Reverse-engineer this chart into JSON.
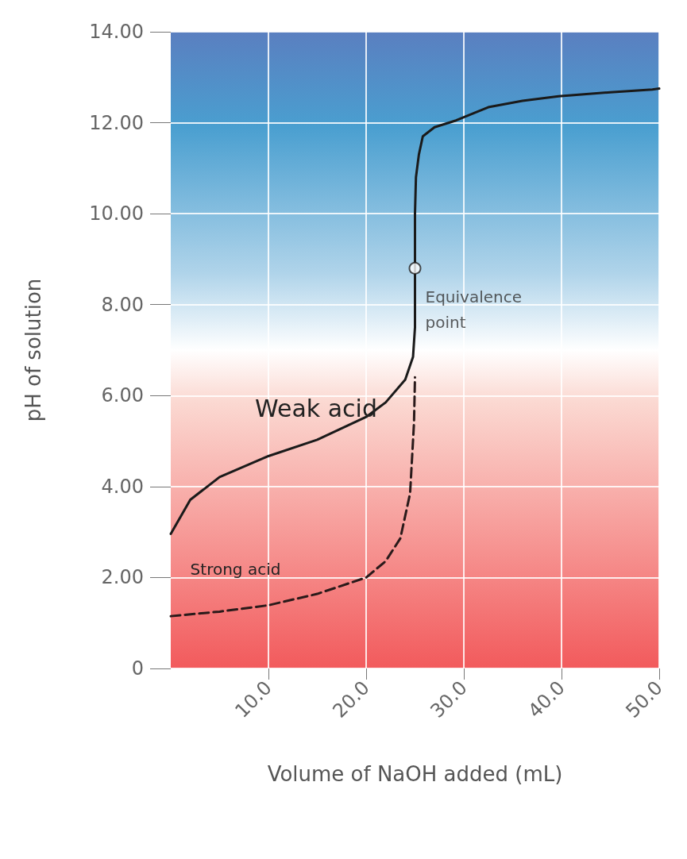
{
  "chart_data": {
    "type": "line",
    "xlabel": "Volume of NaOH added (mL)",
    "ylabel": "pH of solution",
    "xlim": [
      0,
      50
    ],
    "ylim": [
      0,
      14
    ],
    "xticks": [
      {
        "value": 10,
        "label": "10.0"
      },
      {
        "value": 20,
        "label": "20.0"
      },
      {
        "value": 30,
        "label": "30.0"
      },
      {
        "value": 40,
        "label": "40.0"
      },
      {
        "value": 50,
        "label": "50.0"
      }
    ],
    "yticks": [
      0,
      {
        "value": 2,
        "label": "2.00"
      },
      {
        "value": 4,
        "label": "4.00"
      },
      {
        "value": 6,
        "label": "6.00"
      },
      {
        "value": 8,
        "label": "8.00"
      },
      {
        "value": 10,
        "label": "10.00"
      },
      {
        "value": 12,
        "label": "12.00"
      },
      {
        "value": 14,
        "label": "14.00"
      }
    ],
    "grid": true,
    "legend": false,
    "marker": "none",
    "series": [
      {
        "name": "Weak acid",
        "color": "#1a1a1a",
        "line_style": "solid",
        "x": [
          0,
          2,
          5,
          10,
          15,
          20,
          22,
          24,
          24.8,
          25.0,
          25.0,
          25.0,
          25.1,
          25.4,
          25.8,
          27,
          29.2,
          32.5,
          36,
          39.7,
          45,
          49.3,
          50
        ],
        "values": [
          2.96,
          3.71,
          4.21,
          4.67,
          5.03,
          5.53,
          5.85,
          6.35,
          6.85,
          7.5,
          8.8,
          10.0,
          10.8,
          11.3,
          11.7,
          11.9,
          12.05,
          12.34,
          12.48,
          12.58,
          12.67,
          12.73,
          12.75
        ]
      },
      {
        "name": "Strong acid",
        "color": "#2a1a1a",
        "line_style": "dashed",
        "x": [
          0,
          5,
          10,
          15,
          20,
          22,
          23.5,
          24.5,
          24.9,
          25.0
        ],
        "values": [
          1.15,
          1.25,
          1.39,
          1.64,
          2.0,
          2.36,
          2.86,
          3.85,
          5.4,
          6.4
        ]
      }
    ],
    "annotations": [
      {
        "text": "Equivalence point",
        "x": 25,
        "y": 8.8
      }
    ]
  }
}
